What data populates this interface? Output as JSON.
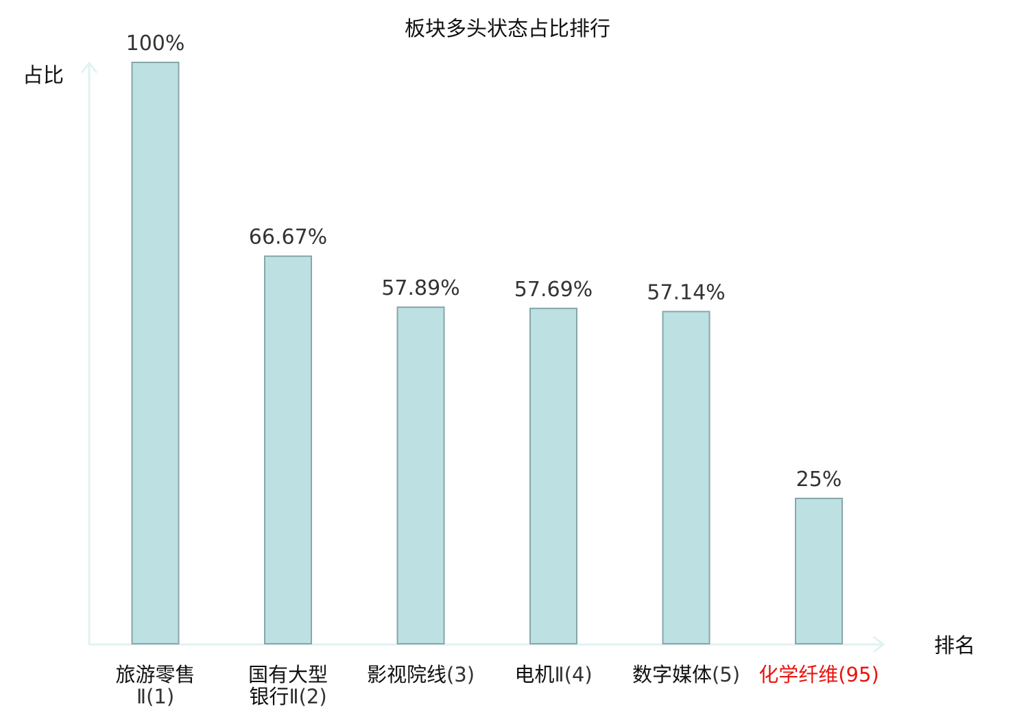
{
  "chart_data": {
    "type": "bar",
    "title": "板块多头状态占比排行",
    "ylabel": "占比",
    "xlabel": "排名",
    "ylim": [
      0,
      100
    ],
    "grid": false,
    "categories": [
      {
        "name": "旅游零售",
        "suffix": "Ⅱ(1)",
        "lines": [
          "旅游零售",
          "Ⅱ(1)"
        ],
        "highlight": false
      },
      {
        "name": "国有大型",
        "suffix": "银行Ⅱ(2)",
        "lines": [
          "国有大型",
          "银行Ⅱ(2)"
        ],
        "highlight": false
      },
      {
        "name": "影视院线",
        "suffix": "(3)",
        "lines": [
          "影视院线(3)"
        ],
        "highlight": false
      },
      {
        "name": "电机",
        "suffix": "Ⅱ(4)",
        "lines": [
          "电机Ⅱ(4)"
        ],
        "highlight": false
      },
      {
        "name": "数字媒体",
        "suffix": "(5)",
        "lines": [
          "数字媒体(5)"
        ],
        "highlight": false
      },
      {
        "name": "化学纤维",
        "suffix": "(95)",
        "lines": [
          "化学纤维(95)"
        ],
        "highlight": true
      }
    ],
    "values": [
      100,
      66.67,
      57.89,
      57.69,
      57.14,
      25
    ],
    "value_labels": [
      "100%",
      "66.67%",
      "57.89%",
      "57.69%",
      "57.14%",
      "25%"
    ]
  },
  "colors": {
    "bar_fill": "#bde0e3",
    "bar_stroke": "#86a6a9",
    "axis": "#e0f2f1",
    "name_text": "#111111",
    "suffix_text": "#333333",
    "highlight_text": "#e8150f"
  }
}
